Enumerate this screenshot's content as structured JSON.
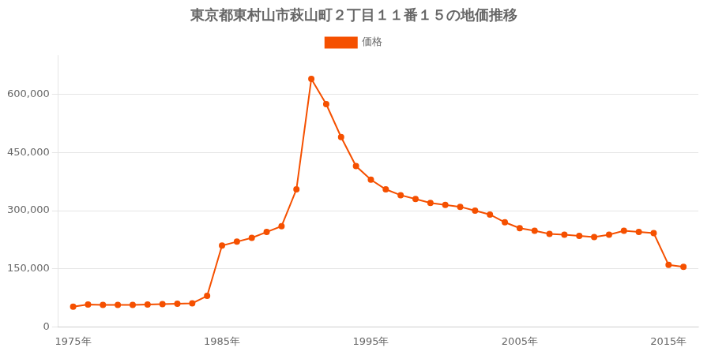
{
  "chart_data": {
    "type": "line",
    "title": "東京都東村山市萩山町２丁目１１番１５の地価推移",
    "x": [
      1975,
      1976,
      1977,
      1978,
      1979,
      1980,
      1981,
      1982,
      1983,
      1984,
      1985,
      1986,
      1987,
      1988,
      1989,
      1990,
      1991,
      1992,
      1993,
      1994,
      1995,
      1996,
      1997,
      1998,
      1999,
      2000,
      2001,
      2002,
      2003,
      2004,
      2005,
      2006,
      2007,
      2008,
      2009,
      2010,
      2011,
      2012,
      2013,
      2014,
      2015,
      2016
    ],
    "series": [
      {
        "name": "価格",
        "color": "#f55000",
        "marker": "circle",
        "values": [
          52000,
          58000,
          57000,
          57000,
          57000,
          58000,
          59000,
          60000,
          61000,
          80000,
          210000,
          220000,
          230000,
          245000,
          260000,
          355000,
          640000,
          575000,
          490000,
          415000,
          380000,
          355000,
          340000,
          330000,
          320000,
          315000,
          310000,
          300000,
          290000,
          270000,
          255000,
          248000,
          240000,
          238000,
          235000,
          232000,
          238000,
          248000,
          245000,
          242000,
          160000,
          155000
        ]
      }
    ],
    "xlim": [
      1974,
      2017
    ],
    "xticks": [
      {
        "value": 1975,
        "label": "1975年"
      },
      {
        "value": 1985,
        "label": "1985年"
      },
      {
        "value": 1995,
        "label": "1995年"
      },
      {
        "value": 2005,
        "label": "2005年"
      },
      {
        "value": 2015,
        "label": "2015年"
      }
    ],
    "ylim": [
      0,
      700000
    ],
    "yticks": [
      0,
      {
        "value": 150000,
        "label": "150,000"
      },
      {
        "value": 300000,
        "label": "300,000"
      },
      {
        "value": 450000,
        "label": "450,000"
      },
      {
        "value": 600000,
        "label": "600,000"
      }
    ],
    "grid": "y",
    "legend": "top"
  }
}
